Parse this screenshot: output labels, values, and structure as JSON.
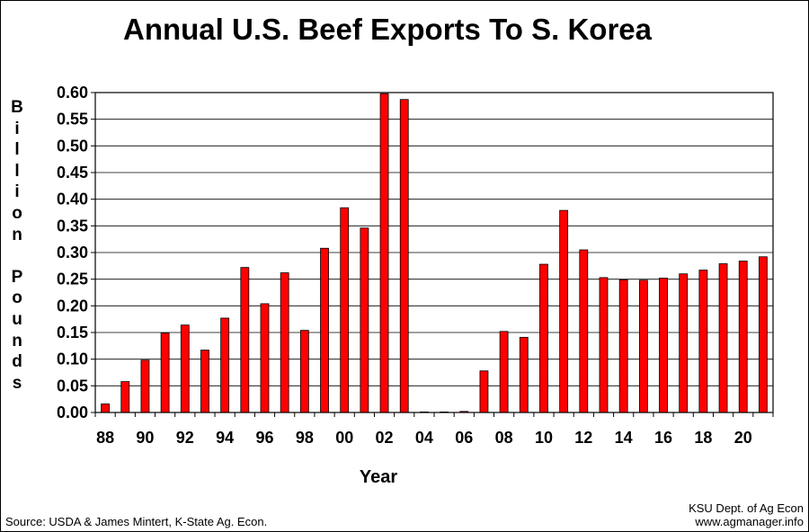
{
  "chart_data": {
    "type": "bar",
    "title": "Annual U.S. Beef Exports To S. Korea",
    "ylabel": "Billion Pounds",
    "xlabel": "Year",
    "ylim": [
      0,
      0.6
    ],
    "yticks": [
      "0.00",
      "0.05",
      "0.10",
      "0.15",
      "0.20",
      "0.25",
      "0.30",
      "0.35",
      "0.40",
      "0.45",
      "0.50",
      "0.55",
      "0.60"
    ],
    "categories": [
      "88",
      "89",
      "90",
      "91",
      "92",
      "93",
      "94",
      "95",
      "96",
      "97",
      "98",
      "99",
      "00",
      "01",
      "02",
      "03",
      "04",
      "05",
      "06",
      "07",
      "08",
      "09",
      "10",
      "11",
      "12",
      "13",
      "14",
      "15",
      "16",
      "17",
      "18",
      "19",
      "20",
      "21"
    ],
    "xtick_labels": [
      "88",
      "",
      "90",
      "",
      "92",
      "",
      "94",
      "",
      "96",
      "",
      "98",
      "",
      "00",
      "",
      "02",
      "",
      "04",
      "",
      "06",
      "",
      "08",
      "",
      "10",
      "",
      "12",
      "",
      "14",
      "",
      "16",
      "",
      "18",
      "",
      "20",
      ""
    ],
    "values": [
      0.016,
      0.058,
      0.098,
      0.149,
      0.164,
      0.117,
      0.177,
      0.272,
      0.204,
      0.262,
      0.154,
      0.308,
      0.384,
      0.346,
      0.598,
      0.587,
      0.001,
      0.001,
      0.002,
      0.078,
      0.152,
      0.141,
      0.278,
      0.379,
      0.305,
      0.253,
      0.249,
      0.248,
      0.252,
      0.26,
      0.267,
      0.279,
      0.284,
      0.292
    ],
    "bar_color": "#ff0000",
    "grid": true,
    "legend": "none"
  },
  "footer": {
    "source": "Source:  USDA & James Mintert, K-State Ag. Econ.",
    "credit_line1": "KSU Dept. of Ag Econ",
    "credit_line2": "www.agmanager.info"
  }
}
